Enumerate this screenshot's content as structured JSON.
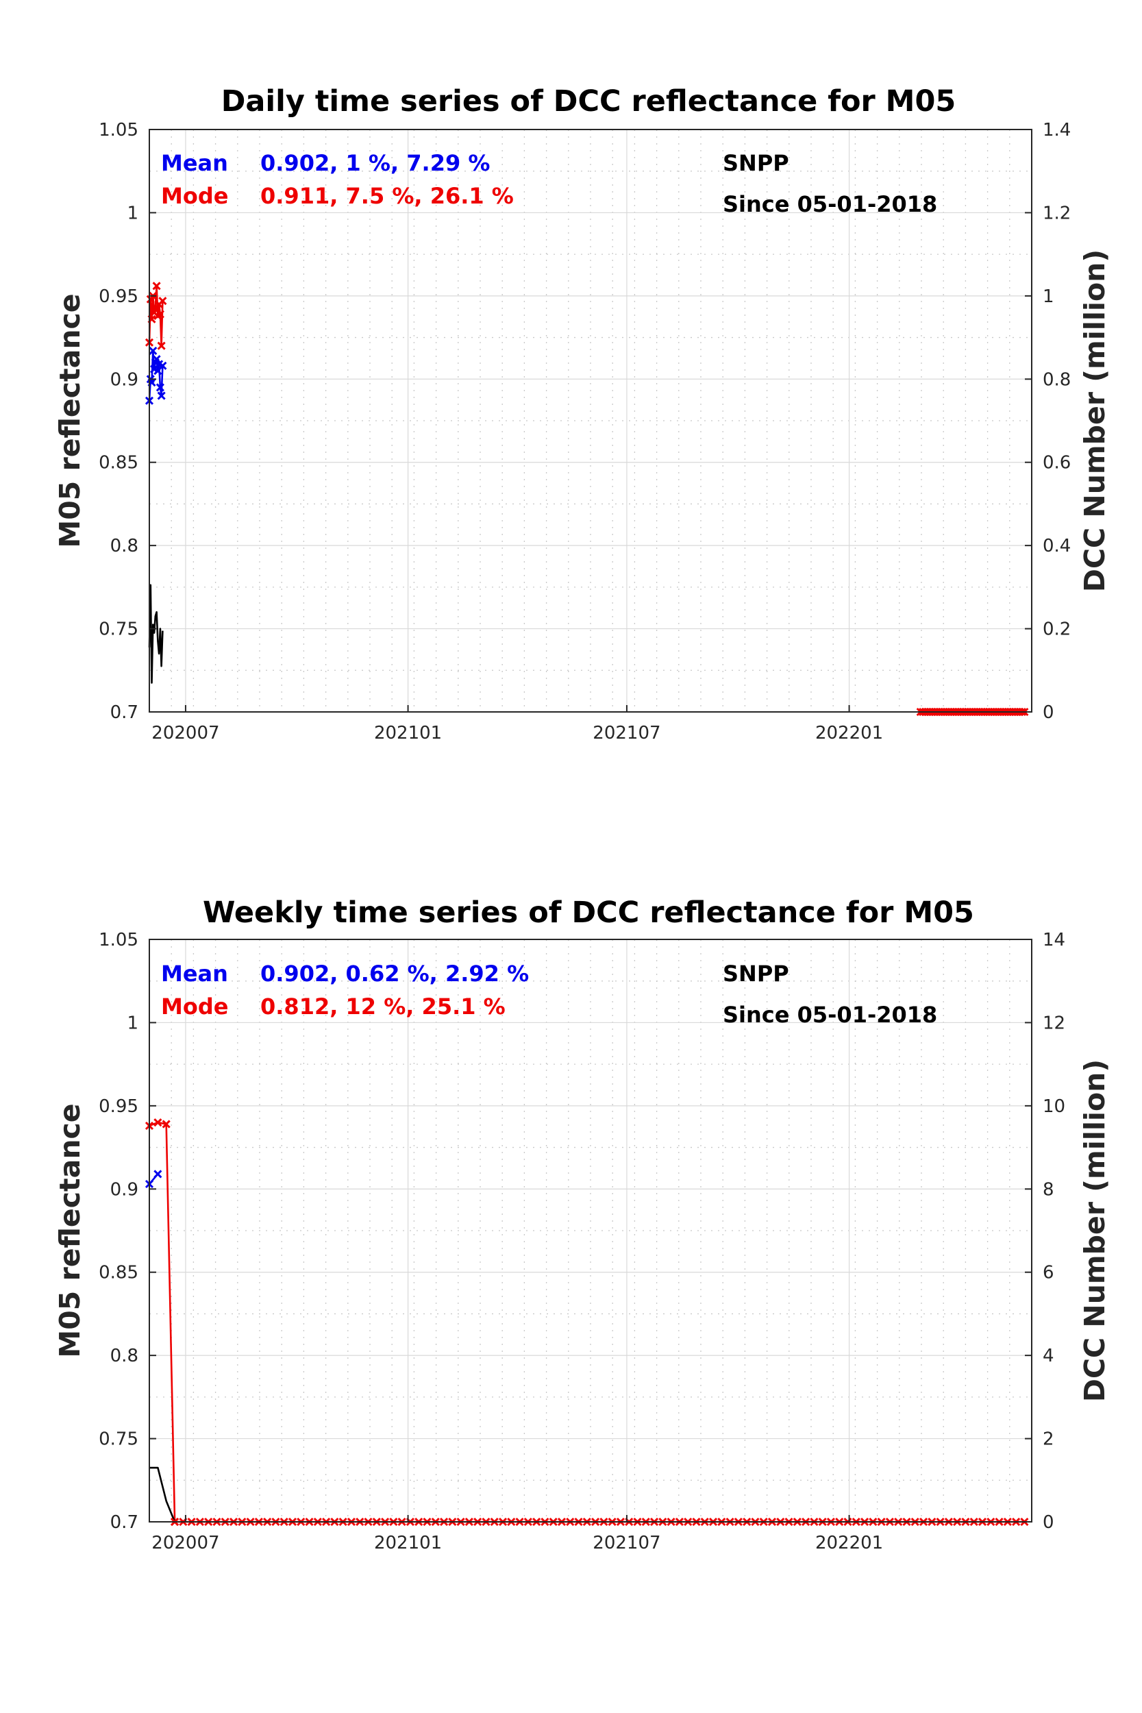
{
  "chart_data": [
    {
      "type": "line",
      "title": "Daily time series of DCC reflectance for M05",
      "ylabel": "M05 reflectance",
      "y2label": "DCC Number (million)",
      "xlim": [
        "2020-06-01",
        "2022-06-01"
      ],
      "ylim": [
        0.7,
        1.05
      ],
      "y2lim": [
        0,
        1.4
      ],
      "x_ticks": [
        "2020-07-01",
        "2021-01-01",
        "2021-07-01",
        "2022-01-01"
      ],
      "x_tick_labels": [
        "202007",
        "202101",
        "202107",
        "202201"
      ],
      "y_ticks": [
        0.7,
        0.75,
        0.8,
        0.85,
        0.9,
        0.95,
        1,
        1.05
      ],
      "y_tick_labels": [
        "0.7",
        "0.75",
        "0.8",
        "0.85",
        "0.9",
        "0.95",
        "1",
        "1.05"
      ],
      "y2_ticks": [
        0,
        0.2,
        0.4,
        0.6,
        0.8,
        1,
        1.2,
        1.4
      ],
      "y2_tick_labels": [
        "0",
        "0.2",
        "0.4",
        "0.6",
        "0.8",
        "1",
        "1.2",
        "1.4"
      ],
      "grid": true,
      "stats": [
        {
          "label": "Mean",
          "value": "0.902, 1 %, 7.29 %",
          "color": "#0000ee"
        },
        {
          "label": "Mode",
          "value": "0.911, 7.5 %, 26.1 %",
          "color": "#ee0000"
        }
      ],
      "annotations": [
        "SNPP",
        "Since 05-01-2018"
      ],
      "series": [
        {
          "name": "Mean",
          "axis": "left",
          "color": "#0000ee",
          "marker": "x",
          "x": [
            "2020-06-01",
            "2020-06-02",
            "2020-06-03",
            "2020-06-04",
            "2020-06-05",
            "2020-06-06",
            "2020-06-07",
            "2020-06-08",
            "2020-06-09",
            "2020-06-10",
            "2020-06-11",
            "2020-06-12"
          ],
          "y": [
            0.887,
            0.9,
            0.898,
            0.917,
            0.906,
            0.91,
            0.912,
            0.905,
            0.909,
            0.895,
            0.89,
            0.908
          ]
        },
        {
          "name": "Mode",
          "axis": "left",
          "color": "#ee0000",
          "marker": "x",
          "x": [
            "2020-06-01",
            "2020-06-02",
            "2020-06-03",
            "2020-06-04",
            "2020-06-05",
            "2020-06-06",
            "2020-06-07",
            "2020-06-08",
            "2020-06-09",
            "2020-06-10",
            "2020-06-11",
            "2020-06-12"
          ],
          "y": [
            0.922,
            0.948,
            0.936,
            0.95,
            0.94,
            0.943,
            0.956,
            0.938,
            0.945,
            0.939,
            0.92,
            0.947
          ]
        },
        {
          "name": "DCC Number",
          "axis": "right",
          "color": "#000000",
          "marker": "none",
          "x": [
            "2020-06-01",
            "2020-06-02",
            "2020-06-03",
            "2020-06-04",
            "2020-06-05",
            "2020-06-06",
            "2020-06-07",
            "2020-06-08",
            "2020-06-09",
            "2020-06-10",
            "2020-06-11",
            "2020-06-12"
          ],
          "y": [
            0.155,
            0.305,
            0.07,
            0.21,
            0.19,
            0.23,
            0.24,
            0.17,
            0.14,
            0.2,
            0.11,
            0.195
          ]
        },
        {
          "name": "Mode (later)",
          "axis": "left",
          "color": "#ee0000",
          "marker": "x",
          "x_range": [
            "2022-03-01",
            "2022-05-26"
          ],
          "x_count": 45,
          "y_constant": 0.7
        }
      ]
    },
    {
      "type": "line",
      "title": "Weekly time series of DCC reflectance for M05",
      "ylabel": "M05 reflectance",
      "y2label": "DCC Number (million)",
      "xlim": [
        "2020-06-01",
        "2022-06-01"
      ],
      "ylim": [
        0.7,
        1.05
      ],
      "y2lim": [
        0,
        14
      ],
      "x_ticks": [
        "2020-07-01",
        "2021-01-01",
        "2021-07-01",
        "2022-01-01"
      ],
      "x_tick_labels": [
        "202007",
        "202101",
        "202107",
        "202201"
      ],
      "y_ticks": [
        0.7,
        0.75,
        0.8,
        0.85,
        0.9,
        0.95,
        1,
        1.05
      ],
      "y_tick_labels": [
        "0.7",
        "0.75",
        "0.8",
        "0.85",
        "0.9",
        "0.95",
        "1",
        "1.05"
      ],
      "y2_ticks": [
        0,
        2,
        4,
        6,
        8,
        10,
        12,
        14
      ],
      "y2_tick_labels": [
        "0",
        "2",
        "4",
        "6",
        "8",
        "10",
        "12",
        "14"
      ],
      "grid": true,
      "stats": [
        {
          "label": "Mean",
          "value": "0.902, 0.62 %, 2.92 %",
          "color": "#0000ee"
        },
        {
          "label": "Mode",
          "value": "0.812, 12 %, 25.1 %",
          "color": "#ee0000"
        }
      ],
      "annotations": [
        "SNPP",
        "Since 05-01-2018"
      ],
      "series": [
        {
          "name": "Mean",
          "axis": "left",
          "color": "#0000ee",
          "marker": "x",
          "x": [
            "2020-06-01",
            "2020-06-08"
          ],
          "y": [
            0.903,
            0.909
          ]
        },
        {
          "name": "Mode",
          "axis": "left",
          "color": "#ee0000",
          "marker": "x",
          "x": [
            "2020-06-01",
            "2020-06-08",
            "2020-06-15",
            "2020-06-22"
          ],
          "y": [
            0.938,
            0.94,
            0.939,
            0.7
          ]
        },
        {
          "name": "DCC Number",
          "axis": "right",
          "color": "#000000",
          "marker": "none",
          "x": [
            "2020-06-01",
            "2020-06-08",
            "2020-06-15",
            "2020-06-22"
          ],
          "y": [
            1.3,
            1.3,
            0.5,
            0.0
          ]
        },
        {
          "name": "Mode (later)",
          "axis": "left",
          "color": "#ee0000",
          "marker": "x",
          "x_range": [
            "2020-06-22",
            "2022-05-26"
          ],
          "x_count": 102,
          "y_constant": 0.7
        }
      ]
    }
  ]
}
